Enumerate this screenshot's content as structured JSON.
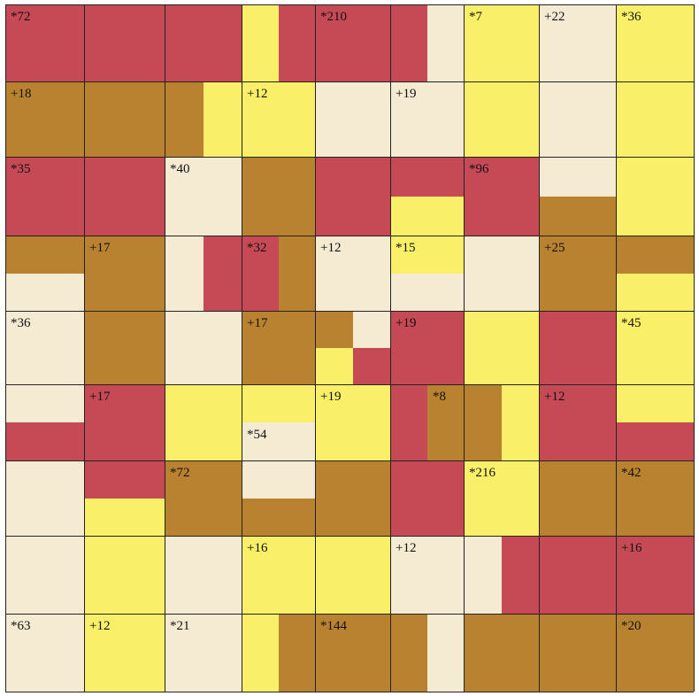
{
  "colors": {
    "red": "#c64a55",
    "brown": "#b98230",
    "yellow": "#f9ef68",
    "cream": "#f5ebd3",
    "line": "#222222"
  },
  "grid": {
    "rows": 9,
    "cols": 9,
    "cells": [
      {
        "r": 0,
        "c": 0,
        "fill": "red",
        "clue": "*72"
      },
      {
        "r": 0,
        "c": 1,
        "fill": "red"
      },
      {
        "r": 0,
        "c": 2,
        "fill": "red"
      },
      {
        "r": 0,
        "c": 3,
        "fill": "yellow",
        "split": "v",
        "fill2": "red"
      },
      {
        "r": 0,
        "c": 4,
        "fill": "red",
        "clue": "*210"
      },
      {
        "r": 0,
        "c": 5,
        "fill": "red",
        "split": "v",
        "fill2": "cream"
      },
      {
        "r": 0,
        "c": 6,
        "fill": "yellow",
        "clue": "*7"
      },
      {
        "r": 0,
        "c": 7,
        "fill": "cream",
        "clue": "+22"
      },
      {
        "r": 0,
        "c": 8,
        "fill": "yellow",
        "clue": "*36"
      },
      {
        "r": 1,
        "c": 0,
        "fill": "brown",
        "clue": "+18"
      },
      {
        "r": 1,
        "c": 1,
        "fill": "brown"
      },
      {
        "r": 1,
        "c": 2,
        "fill": "brown",
        "split": "v",
        "fill2": "yellow"
      },
      {
        "r": 1,
        "c": 3,
        "fill": "yellow",
        "clue": "+12"
      },
      {
        "r": 1,
        "c": 4,
        "fill": "cream"
      },
      {
        "r": 1,
        "c": 5,
        "fill": "cream",
        "clue": "+19"
      },
      {
        "r": 1,
        "c": 6,
        "fill": "yellow"
      },
      {
        "r": 1,
        "c": 7,
        "fill": "cream"
      },
      {
        "r": 1,
        "c": 8,
        "fill": "yellow"
      },
      {
        "r": 2,
        "c": 0,
        "fill": "red",
        "clue": "*35"
      },
      {
        "r": 2,
        "c": 1,
        "fill": "red"
      },
      {
        "r": 2,
        "c": 2,
        "fill": "cream",
        "clue": "*40"
      },
      {
        "r": 2,
        "c": 3,
        "fill": "brown"
      },
      {
        "r": 2,
        "c": 4,
        "fill": "red"
      },
      {
        "r": 2,
        "c": 5,
        "fill": "red",
        "split": "h",
        "fill2": "yellow"
      },
      {
        "r": 2,
        "c": 6,
        "fill": "red",
        "clue": "*96"
      },
      {
        "r": 2,
        "c": 7,
        "fill": "cream",
        "split": "h",
        "fill2": "brown"
      },
      {
        "r": 2,
        "c": 8,
        "fill": "yellow"
      },
      {
        "r": 3,
        "c": 0,
        "fill": "brown",
        "split": "h",
        "fill2": "cream"
      },
      {
        "r": 3,
        "c": 1,
        "fill": "brown",
        "clue": "+17"
      },
      {
        "r": 3,
        "c": 2,
        "fill": "cream",
        "split": "v",
        "fill2": "red"
      },
      {
        "r": 3,
        "c": 3,
        "fill": "red",
        "split": "v",
        "fill2": "brown",
        "clue": "*32"
      },
      {
        "r": 3,
        "c": 4,
        "fill": "cream",
        "clue": "+12"
      },
      {
        "r": 3,
        "c": 5,
        "fill": "yellow",
        "split": "h",
        "fill2": "cream",
        "clue": "*15"
      },
      {
        "r": 3,
        "c": 6,
        "fill": "cream"
      },
      {
        "r": 3,
        "c": 7,
        "fill": "brown",
        "clue": "+25"
      },
      {
        "r": 3,
        "c": 8,
        "fill": "brown",
        "split": "h",
        "fill2": "yellow"
      },
      {
        "r": 4,
        "c": 0,
        "fill": "cream",
        "clue": "*36"
      },
      {
        "r": 4,
        "c": 1,
        "fill": "brown"
      },
      {
        "r": 4,
        "c": 2,
        "fill": "cream"
      },
      {
        "r": 4,
        "c": 3,
        "fill": "brown",
        "clue": "+17"
      },
      {
        "r": 4,
        "c": 4,
        "fill": "brown",
        "split": "q",
        "q": [
          "brown",
          "cream",
          "yellow",
          "red"
        ]
      },
      {
        "r": 4,
        "c": 5,
        "fill": "red",
        "clue": "+19"
      },
      {
        "r": 4,
        "c": 6,
        "fill": "yellow"
      },
      {
        "r": 4,
        "c": 7,
        "fill": "red"
      },
      {
        "r": 4,
        "c": 8,
        "fill": "yellow",
        "clue": "*45"
      },
      {
        "r": 5,
        "c": 0,
        "fill": "cream",
        "split": "h",
        "fill2": "red"
      },
      {
        "r": 5,
        "c": 1,
        "fill": "red",
        "clue": "+17"
      },
      {
        "r": 5,
        "c": 2,
        "fill": "yellow"
      },
      {
        "r": 5,
        "c": 3,
        "fill": "yellow",
        "split": "h",
        "fill2": "cream",
        "clue2": "*54"
      },
      {
        "r": 5,
        "c": 4,
        "fill": "yellow",
        "clue": "+19"
      },
      {
        "r": 5,
        "c": 5,
        "fill": "red",
        "split": "v",
        "fill2": "brown",
        "clue": "*8",
        "clueRight": true
      },
      {
        "r": 5,
        "c": 6,
        "fill": "brown",
        "split": "v",
        "fill2": "yellow"
      },
      {
        "r": 5,
        "c": 7,
        "fill": "red",
        "clue": "+12"
      },
      {
        "r": 5,
        "c": 8,
        "fill": "yellow",
        "split": "h",
        "fill2": "red"
      },
      {
        "r": 6,
        "c": 0,
        "fill": "cream"
      },
      {
        "r": 6,
        "c": 1,
        "fill": "red",
        "split": "h",
        "fill2": "yellow"
      },
      {
        "r": 6,
        "c": 2,
        "fill": "brown",
        "clue": "*72"
      },
      {
        "r": 6,
        "c": 3,
        "fill": "cream",
        "split": "h",
        "fill2": "brown"
      },
      {
        "r": 6,
        "c": 4,
        "fill": "brown"
      },
      {
        "r": 6,
        "c": 5,
        "fill": "red"
      },
      {
        "r": 6,
        "c": 6,
        "fill": "yellow",
        "clue": "*216"
      },
      {
        "r": 6,
        "c": 7,
        "fill": "brown"
      },
      {
        "r": 6,
        "c": 8,
        "fill": "brown",
        "clue": "*42"
      },
      {
        "r": 7,
        "c": 0,
        "fill": "cream"
      },
      {
        "r": 7,
        "c": 1,
        "fill": "yellow"
      },
      {
        "r": 7,
        "c": 2,
        "fill": "cream"
      },
      {
        "r": 7,
        "c": 3,
        "fill": "yellow",
        "clue": "+16"
      },
      {
        "r": 7,
        "c": 4,
        "fill": "yellow"
      },
      {
        "r": 7,
        "c": 5,
        "fill": "cream",
        "clue": "+12"
      },
      {
        "r": 7,
        "c": 6,
        "fill": "cream",
        "split": "v",
        "fill2": "red"
      },
      {
        "r": 7,
        "c": 7,
        "fill": "red"
      },
      {
        "r": 7,
        "c": 8,
        "fill": "red",
        "clue": "+16"
      },
      {
        "r": 8,
        "c": 0,
        "fill": "cream",
        "clue": "*63"
      },
      {
        "r": 8,
        "c": 1,
        "fill": "yellow",
        "clue": "+12"
      },
      {
        "r": 8,
        "c": 2,
        "fill": "cream",
        "clue": "*21"
      },
      {
        "r": 8,
        "c": 3,
        "fill": "yellow",
        "split": "v",
        "fill2": "brown"
      },
      {
        "r": 8,
        "c": 4,
        "fill": "brown",
        "clue": "*144"
      },
      {
        "r": 8,
        "c": 5,
        "fill": "brown",
        "split": "v",
        "fill2": "cream"
      },
      {
        "r": 8,
        "c": 6,
        "fill": "brown"
      },
      {
        "r": 8,
        "c": 7,
        "fill": "brown"
      },
      {
        "r": 8,
        "c": 8,
        "fill": "brown",
        "clue": "*20"
      }
    ]
  }
}
